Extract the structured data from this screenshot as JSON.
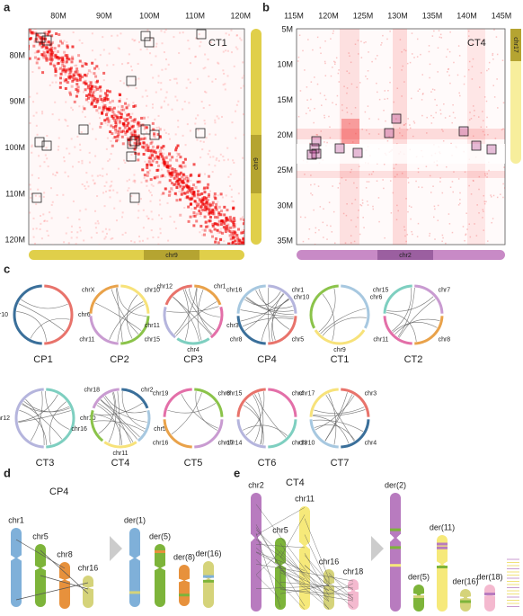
{
  "panels": {
    "a": {
      "letter": "a",
      "x_ticks": [
        "80M",
        "90M",
        "100M",
        "110M",
        "120M"
      ],
      "y_ticks": [
        "80M",
        "90M",
        "100M",
        "110M",
        "120M"
      ],
      "sample": "CT1",
      "chromosome": "chr9"
    },
    "b": {
      "letter": "b",
      "x_ticks": [
        "115M",
        "120M",
        "125M",
        "130M",
        "135M",
        "140M",
        "145M"
      ],
      "y_ticks": [
        "5M",
        "10M",
        "15M",
        "20M",
        "25M",
        "30M",
        "35M"
      ],
      "sample": "CT4",
      "chromosome": "chr2",
      "side_chromosome": "chr17"
    },
    "c": {
      "letter": "c",
      "circos": [
        {
          "name": "CP1",
          "labels": [
            "chr6",
            "chr10"
          ]
        },
        {
          "name": "CP2",
          "labels": [
            "chr10",
            "chr15",
            "chr11",
            "chrX"
          ]
        },
        {
          "name": "CP3",
          "labels": [
            "chr1",
            "chr3",
            "chr4",
            "chr11",
            "chr12"
          ]
        },
        {
          "name": "CP4",
          "labels": [
            "chr1",
            "chr5",
            "chr8",
            "chr16"
          ]
        },
        {
          "name": "CT1",
          "labels": [
            "chr6",
            "chr9",
            "chr10"
          ]
        },
        {
          "name": "CT2",
          "labels": [
            "chr7",
            "chr8",
            "chr11",
            "chr15"
          ]
        },
        {
          "name": "CT3",
          "labels": [
            "chr10",
            "chr12"
          ]
        },
        {
          "name": "CT4",
          "labels": [
            "chr2",
            "chr5",
            "chr11",
            "chr16",
            "chr18"
          ]
        },
        {
          "name": "CT5",
          "labels": [
            "chr8",
            "chr17",
            "chr16",
            "chr19"
          ]
        },
        {
          "name": "CT6",
          "labels": [
            "chr4",
            "chr13",
            "chr14",
            "chr15"
          ]
        },
        {
          "name": "CT7",
          "labels": [
            "chr3",
            "chr4",
            "chr10",
            "chr17"
          ]
        }
      ]
    },
    "d": {
      "letter": "d",
      "sample": "CP4",
      "chromosomes": [
        "chr1",
        "chr5",
        "chr8",
        "chr16"
      ],
      "derivatives": [
        "der(1)",
        "der(5)",
        "der(8)",
        "der(16)"
      ]
    },
    "e": {
      "letter": "e",
      "sample": "CT4",
      "chromosomes": [
        "chr2",
        "chr5",
        "chr11",
        "chr16",
        "chr18"
      ],
      "derivatives": [
        "der(2)",
        "der(5)",
        "der(11)",
        "der(16)",
        "der(18)"
      ]
    }
  }
}
